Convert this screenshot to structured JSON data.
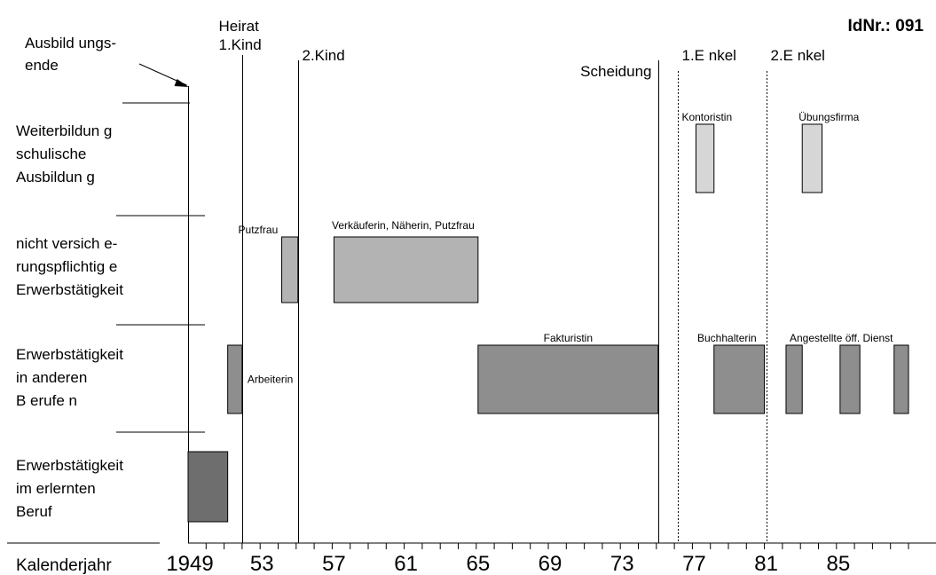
{
  "chart_data": {
    "type": "timeline",
    "id_label": "IdNr.: 091",
    "x_axis": {
      "label": "Kalenderjahr",
      "range": [
        1948,
        1990
      ],
      "tick_labels": [
        {
          "value": 1949,
          "text": "1949"
        },
        {
          "value": 1953,
          "text": "53"
        },
        {
          "value": 1957,
          "text": "57"
        },
        {
          "value": 1961,
          "text": "61"
        },
        {
          "value": 1965,
          "text": "65"
        },
        {
          "value": 1969,
          "text": "69"
        },
        {
          "value": 1973,
          "text": "73"
        },
        {
          "value": 1977,
          "text": "77"
        },
        {
          "value": 1981,
          "text": "81"
        },
        {
          "value": 1985,
          "text": "85"
        }
      ]
    },
    "rows": [
      {
        "key": "weiterbildung",
        "lines": [
          "Weiterbildun g",
          "schulische",
          "Ausbildun g"
        ]
      },
      {
        "key": "nicht_versicherungspflichtig",
        "lines": [
          "nicht versich e-",
          "rungspflichtig e",
          "Erwerbstätigkeit"
        ]
      },
      {
        "key": "andere_berufe",
        "lines": [
          "Erwerbstätigkeit",
          "in anderen",
          "B erufe n"
        ]
      },
      {
        "key": "erlernter_beruf",
        "lines": [
          "Erwerbstätigkeit",
          "im erlernten",
          "Beruf"
        ]
      }
    ],
    "events": [
      {
        "lines": [
          "Ausbild ungs-",
          "ende"
        ],
        "year": 1948.9,
        "style": "arrow"
      },
      {
        "lines": [
          "Heirat",
          "1.Kind"
        ],
        "year": 1951.9,
        "style": "solid"
      },
      {
        "lines": [
          "2.Kind"
        ],
        "year": 1955,
        "style": "solid"
      },
      {
        "lines": [
          "Scheidung"
        ],
        "year": 1975,
        "style": "solid"
      },
      {
        "lines": [
          "1.E nkel"
        ],
        "year": 1976.1,
        "style": "dotted"
      },
      {
        "lines": [
          "2.E nkel"
        ],
        "year": 1981,
        "style": "dotted"
      }
    ],
    "bars": [
      {
        "row": "erlernter_beruf",
        "start": 1948.9,
        "end": 1951.1,
        "label": "",
        "color": "#6e6e6e"
      },
      {
        "row": "andere_berufe",
        "start": 1951.1,
        "end": 1951.9,
        "label": "Arbeiterin",
        "label_pos": "right",
        "color": "#8e8e8e"
      },
      {
        "row": "nicht_versicherungspflichtig",
        "start": 1954.1,
        "end": 1955,
        "label": "Putzfrau",
        "label_pos": "top",
        "color": "#b3b3b3"
      },
      {
        "row": "nicht_versicherungspflichtig",
        "start": 1957,
        "end": 1965,
        "label": "Verkäuferin, Näherin, Putzfrau",
        "label_pos": "top",
        "color": "#b3b3b3"
      },
      {
        "row": "andere_berufe",
        "start": 1965,
        "end": 1975,
        "label": "Fakturistin",
        "label_pos": "top",
        "color": "#8e8e8e"
      },
      {
        "row": "weiterbildung",
        "start": 1977.1,
        "end": 1978.1,
        "label": "Kontoristin",
        "label_pos": "top",
        "color": "#d6d6d6"
      },
      {
        "row": "andere_berufe",
        "start": 1978.1,
        "end": 1980.9,
        "label": "Buchhalterin",
        "label_pos": "top",
        "color": "#8e8e8e"
      },
      {
        "row": "weiterbildung",
        "start": 1983,
        "end": 1984.1,
        "label": "Übungsfirma",
        "label_pos": "top",
        "color": "#d6d6d6"
      },
      {
        "row": "andere_berufe",
        "start": 1982.1,
        "end": 1983,
        "label": "Angestellte öff. Dienst",
        "label_pos": "top",
        "color": "#8e8e8e"
      },
      {
        "row": "andere_berufe",
        "start": 1985.1,
        "end": 1986.2,
        "label": "",
        "color": "#8e8e8e"
      },
      {
        "row": "andere_berufe",
        "start": 1988.1,
        "end": 1988.9,
        "label": "",
        "color": "#8e8e8e"
      }
    ]
  }
}
